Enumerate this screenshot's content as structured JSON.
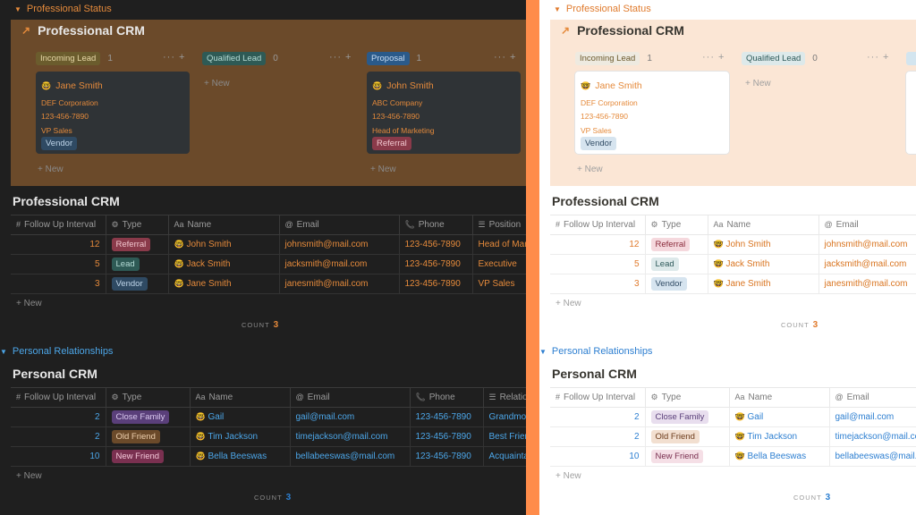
{
  "toggles": {
    "professional": "Professional Status",
    "personal": "Personal Relationships"
  },
  "board": {
    "title": "Professional CRM",
    "columns": [
      {
        "label": "Incoming Lead",
        "count": "1"
      },
      {
        "label": "Qualified Lead",
        "count": "0"
      },
      {
        "label": "Proposal",
        "count": "1"
      }
    ],
    "cards": [
      {
        "name": "Jane Smith",
        "company": "DEF Corporation",
        "phone": "123-456-7890",
        "title": "VP Sales",
        "tag": "Vendor"
      },
      {
        "name": "John Smith",
        "company": "ABC Company",
        "phone": "123-456-7890",
        "title": "Head of Marketing",
        "tag": "Referral"
      }
    ],
    "new_label": "New"
  },
  "professional_table": {
    "title": "Professional CRM",
    "headers": [
      "Follow Up Interval",
      "Type",
      "Name",
      "Email",
      "Phone",
      "Position"
    ],
    "rows": [
      {
        "interval": "12",
        "type": "Referral",
        "name": "John Smith",
        "email": "johnsmith@mail.com",
        "phone": "123-456-7890",
        "position": "Head of Marketing"
      },
      {
        "interval": "5",
        "type": "Lead",
        "name": "Jack Smith",
        "email": "jacksmith@mail.com",
        "phone": "123-456-7890",
        "position": "Executive"
      },
      {
        "interval": "3",
        "type": "Vendor",
        "name": "Jane Smith",
        "email": "janesmith@mail.com",
        "phone": "123-456-7890",
        "position": "VP Sales"
      }
    ],
    "new_label": "New",
    "count_label": "COUNT",
    "count_value": "3"
  },
  "personal_table": {
    "title": "Personal CRM",
    "headers": [
      "Follow Up Interval",
      "Type",
      "Name",
      "Email",
      "Phone",
      "Relationship"
    ],
    "rows": [
      {
        "interval": "2",
        "type": "Close Family",
        "name": "Gail",
        "email": "gail@mail.com",
        "phone": "123-456-7890",
        "relation": "Grandmother"
      },
      {
        "interval": "2",
        "type": "Old Friend",
        "name": "Tim Jackson",
        "email": "timejackson@mail.com",
        "phone": "123-456-7890",
        "relation": "Best Friend"
      },
      {
        "interval": "10",
        "type": "New Friend",
        "name": "Bella Beeswas",
        "email": "bellabeeswas@mail.com",
        "phone": "123-456-7890",
        "relation": "Acquaintance"
      }
    ],
    "new_label": "New",
    "count_label": "COUNT",
    "count_value": "3"
  },
  "icons": {
    "hash": "#",
    "type": "⚙",
    "name": "Aa",
    "email": "@",
    "phone": "📞",
    "position": "☰",
    "person": "🤓",
    "arrow": "↗",
    "toggle": "▼"
  }
}
